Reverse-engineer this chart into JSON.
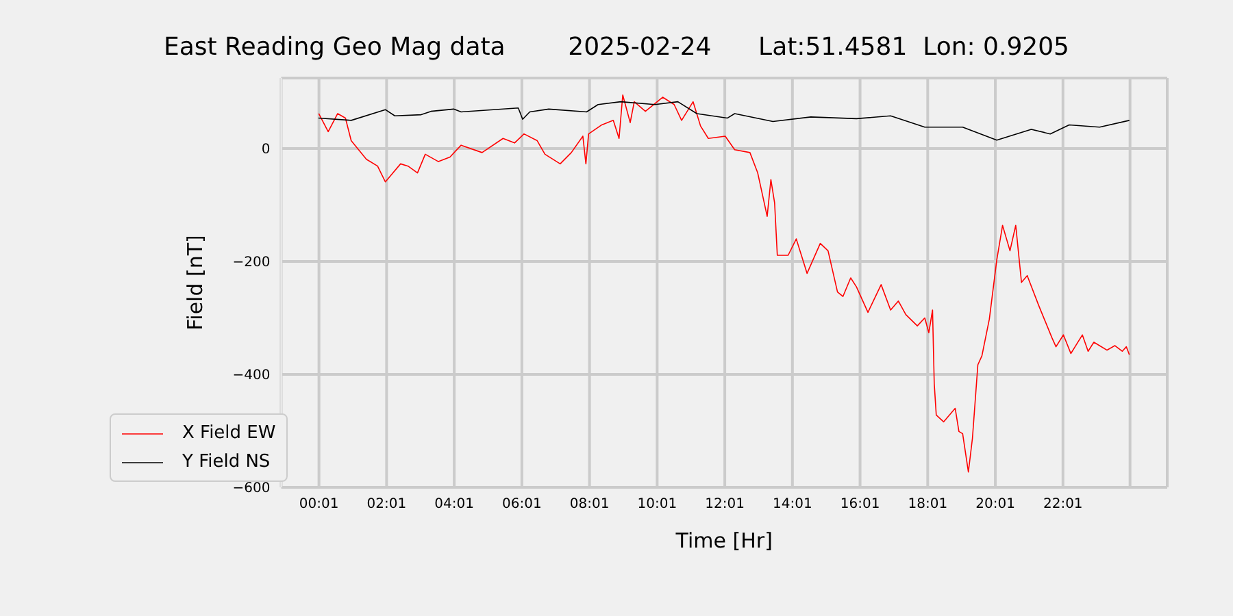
{
  "chart_data": {
    "type": "line",
    "title": "East Reading Geo Mag data        2025-02-24      Lat:51.4581  Lon: 0.9205",
    "xlabel": "Time  [Hr]",
    "ylabel": "Field  [nT]",
    "xlim": [
      -1.1,
      25.1
    ],
    "xticks": [
      {
        "value": 0.017,
        "label": "00:01"
      },
      {
        "value": 2.017,
        "label": "02:01"
      },
      {
        "value": 4.017,
        "label": "04:01"
      },
      {
        "value": 6.017,
        "label": "06:01"
      },
      {
        "value": 8.017,
        "label": "08:01"
      },
      {
        "value": 10.017,
        "label": "10:01"
      },
      {
        "value": 12.017,
        "label": "12:01"
      },
      {
        "value": 14.017,
        "label": "14:01"
      },
      {
        "value": 16.017,
        "label": "16:01"
      },
      {
        "value": 18.017,
        "label": "18:01"
      },
      {
        "value": 20.017,
        "label": "20:01"
      },
      {
        "value": 22.017,
        "label": "22:01"
      },
      {
        "value": 24,
        "label": null
      }
    ],
    "ylim": [
      -600,
      125
    ],
    "yticks": [
      {
        "value": -600,
        "label": "−600"
      },
      {
        "value": -400,
        "label": "−400"
      },
      {
        "value": -200,
        "label": "−200"
      },
      0
    ],
    "grid": true,
    "legend": "bottom left",
    "marker": "none",
    "line_style": "solid",
    "series": [
      {
        "name": "X Field EW",
        "color": "#ff0000",
        "x": [
          0.01,
          0.29,
          0.57,
          0.8,
          0.97,
          1.42,
          1.75,
          1.98,
          2.43,
          2.65,
          2.93,
          3.16,
          3.55,
          3.89,
          4.22,
          4.84,
          5.46,
          5.8,
          6.08,
          6.47,
          6.7,
          7.15,
          7.48,
          7.82,
          7.91,
          7.99,
          8.38,
          8.72,
          8.89,
          9.0,
          9.22,
          9.34,
          9.67,
          10.18,
          10.52,
          10.74,
          11.08,
          11.3,
          11.53,
          12.03,
          12.31,
          12.76,
          12.99,
          13.27,
          13.38,
          13.49,
          13.57,
          13.89,
          14.13,
          14.45,
          14.84,
          15.07,
          15.35,
          15.51,
          15.74,
          15.91,
          16.25,
          16.64,
          16.92,
          17.15,
          17.37,
          17.71,
          17.93,
          18.05,
          18.16,
          18.21,
          18.27,
          18.49,
          18.83,
          18.94,
          19.05,
          19.22,
          19.34,
          19.5,
          19.62,
          19.84,
          20.06,
          20.23,
          20.45,
          20.62,
          20.79,
          20.96,
          21.3,
          21.69,
          21.81,
          22.03,
          22.25,
          22.59,
          22.76,
          22.93,
          23.32,
          23.55,
          23.77,
          23.89,
          23.98
        ],
        "values": [
          62,
          30,
          62,
          54,
          14,
          -19,
          -31,
          -59,
          -27,
          -31,
          -43,
          -10,
          -23,
          -15,
          6,
          -7,
          18,
          10,
          26,
          14,
          -10,
          -27,
          -7,
          22,
          -27,
          26,
          42,
          50,
          18,
          95,
          46,
          83,
          66,
          91,
          78,
          50,
          83,
          40,
          18,
          22,
          -2,
          -7,
          -43,
          -120,
          -55,
          -96,
          -189,
          -189,
          -160,
          -221,
          -168,
          -181,
          -254,
          -262,
          -229,
          -245,
          -290,
          -241,
          -286,
          -270,
          -294,
          -314,
          -300,
          -326,
          -286,
          -416,
          -472,
          -484,
          -460,
          -501,
          -505,
          -573,
          -513,
          -383,
          -367,
          -302,
          -197,
          -136,
          -181,
          -136,
          -237,
          -225,
          -278,
          -335,
          -351,
          -330,
          -363,
          -330,
          -359,
          -343,
          -357,
          -349,
          -359,
          -351,
          -365
        ]
      },
      {
        "name": "Y Field NS",
        "color": "#000000",
        "x": [
          0,
          0.97,
          1.98,
          2.26,
          3.04,
          3.33,
          4.0,
          4.22,
          5.91,
          6.04,
          6.25,
          6.81,
          7.93,
          8.27,
          8.94,
          9.95,
          10.63,
          11.19,
          12.09,
          12.31,
          13.44,
          14.56,
          15.91,
          16.92,
          17.93,
          19.05,
          20.06,
          21.08,
          21.64,
          22.2,
          23.1,
          23.98
        ],
        "values": [
          54,
          50,
          69,
          58,
          60,
          66,
          70,
          65,
          72,
          52,
          65,
          70,
          65,
          78,
          83,
          78,
          83,
          62,
          54,
          62,
          48,
          56,
          53,
          58,
          38,
          38,
          15,
          34,
          26,
          42,
          38,
          50
        ]
      }
    ]
  }
}
